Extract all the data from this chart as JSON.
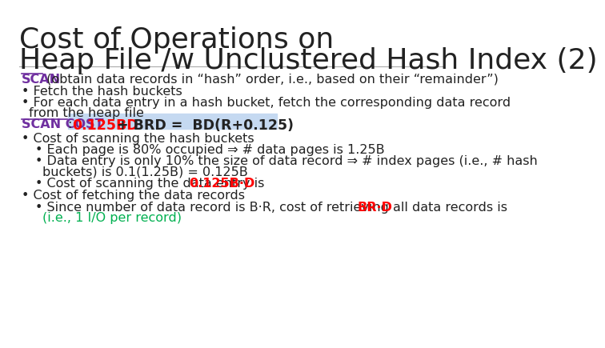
{
  "title_line1": "Cost of Operations on",
  "title_line2": "Heap File /w Unclustered Hash Index (2)",
  "bg_color": "#ffffff",
  "title_color": "#222222",
  "title_fontsize": 26,
  "body_fontsize": 11.5,
  "scan_color": "#7030a0",
  "cost_box_bg": "#c5d9f1",
  "red_color": "#ff0000",
  "green_color": "#00b050",
  "dark_color": "#222222"
}
